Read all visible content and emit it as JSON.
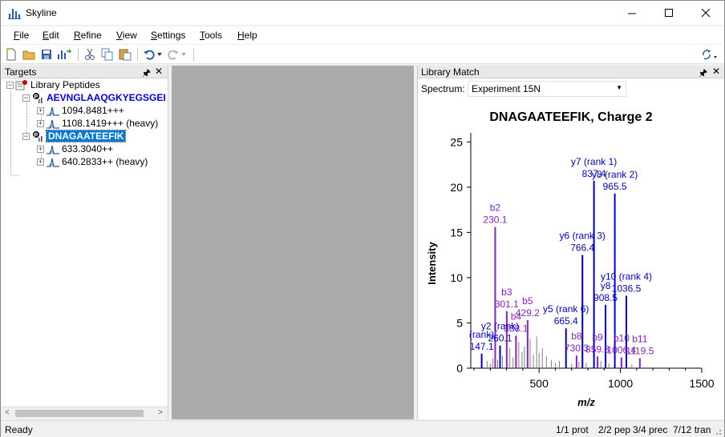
{
  "window": {
    "title": "Skyline"
  },
  "menu": [
    {
      "label": "File",
      "key": "F"
    },
    {
      "label": "Edit",
      "key": "E"
    },
    {
      "label": "Refine",
      "key": "R"
    },
    {
      "label": "View",
      "key": "V"
    },
    {
      "label": "Settings",
      "key": "S"
    },
    {
      "label": "Tools",
      "key": "T"
    },
    {
      "label": "Help",
      "key": "H"
    }
  ],
  "targets": {
    "title": "Targets",
    "root": "Library Peptides",
    "peptide1": "AEVNGLAAQGKYEGSGEI",
    "p1_prec1": "1094.8481+++",
    "p1_prec2": "1108.1419+++ (heavy)",
    "peptide2": "DNAGAATEEFIK",
    "p2_prec1": "633.3040++",
    "p2_prec2": "640.2833++ (heavy)"
  },
  "library": {
    "title": "Library Match",
    "spectrum_label": "Spectrum:",
    "spectrum_value": "Experiment 15N"
  },
  "status": {
    "ready": "Ready",
    "prot": "1/1 prot",
    "pep": "2/2 pep",
    "prec": "3/4 prec",
    "tran": "7/12 tran"
  },
  "colors": {
    "y_ion": "#0000cc",
    "b_ion": "#8b1fc8",
    "other": "#808080",
    "selected": "#0078d7"
  },
  "chart_data": {
    "type": "bar",
    "title": "DNAGAATEEFIK, Charge 2",
    "xlabel": "m/z",
    "ylabel": "Intensity",
    "xlim": [
      80,
      1500
    ],
    "ylim": [
      0,
      26
    ],
    "xticks": [
      500,
      1000,
      1500
    ],
    "yticks": [
      0,
      5,
      10,
      15,
      20,
      25
    ],
    "series": [
      {
        "name": "y",
        "color": "#0000cc",
        "peaks": [
          {
            "x": 837.4,
            "y": 20.7,
            "label": "y7 (rank 1)",
            "label2": "837.4"
          },
          {
            "x": 965.5,
            "y": 19.3,
            "label": "y8 (rank 2)",
            "label2": "965.5"
          },
          {
            "x": 766.4,
            "y": 12.5,
            "label": "y6 (rank 3)",
            "label2": "766.4"
          },
          {
            "x": 1036.5,
            "y": 8.0,
            "label": "y10 (rank 4)",
            "label2": "1036.5"
          },
          {
            "x": 908.5,
            "y": 7.0,
            "label": "y8",
            "label2": "908.5"
          },
          {
            "x": 665.4,
            "y": 4.4,
            "label": "y5 (rank 6)",
            "label2": "665.4"
          },
          {
            "x": 260.1,
            "y": 2.5,
            "label": "y2 (rank)",
            "label2": "260.1"
          },
          {
            "x": 147.1,
            "y": 1.6,
            "label": "(rank)",
            "label2": "147.1"
          }
        ]
      },
      {
        "name": "b",
        "color": "#8b1fc8",
        "peaks": [
          {
            "x": 230.1,
            "y": 15.6,
            "label": "b2",
            "label2": "230.1"
          },
          {
            "x": 301.1,
            "y": 6.3,
            "label": "b3",
            "label2": "301.1"
          },
          {
            "x": 429.2,
            "y": 5.3,
            "label": "b5",
            "label2": "429.2"
          },
          {
            "x": 358.1,
            "y": 3.6,
            "label": "b4",
            "label2": "358.1"
          },
          {
            "x": 730.3,
            "y": 1.4,
            "label": "b8",
            "label2": "730.3"
          },
          {
            "x": 859.3,
            "y": 1.3,
            "label": "b9",
            "label2": "859.3"
          },
          {
            "x": 1006.4,
            "y": 1.2,
            "label": "b10",
            "label2": "1006.4"
          },
          {
            "x": 1119.5,
            "y": 1.1,
            "label": "b11",
            "label2": "1119.5"
          }
        ]
      },
      {
        "name": "other",
        "color": "#808080",
        "peaks": [
          {
            "x": 180,
            "y": 0.8
          },
          {
            "x": 200,
            "y": 0.5
          },
          {
            "x": 215,
            "y": 1.1
          },
          {
            "x": 245,
            "y": 0.9
          },
          {
            "x": 275,
            "y": 1.4
          },
          {
            "x": 320,
            "y": 2.2
          },
          {
            "x": 340,
            "y": 1.2
          },
          {
            "x": 375,
            "y": 2.9
          },
          {
            "x": 395,
            "y": 1.8
          },
          {
            "x": 410,
            "y": 2.4
          },
          {
            "x": 445,
            "y": 3.2
          },
          {
            "x": 465,
            "y": 1.5
          },
          {
            "x": 485,
            "y": 3.5
          },
          {
            "x": 500,
            "y": 1.7
          },
          {
            "x": 520,
            "y": 2.2
          },
          {
            "x": 545,
            "y": 1.3
          },
          {
            "x": 575,
            "y": 0.9
          },
          {
            "x": 600,
            "y": 0.6
          },
          {
            "x": 625,
            "y": 0.8
          },
          {
            "x": 700,
            "y": 0.5
          },
          {
            "x": 745,
            "y": 0.7
          },
          {
            "x": 790,
            "y": 0.6
          },
          {
            "x": 880,
            "y": 0.8
          },
          {
            "x": 930,
            "y": 0.5
          },
          {
            "x": 1070,
            "y": 0.4
          }
        ]
      }
    ]
  }
}
